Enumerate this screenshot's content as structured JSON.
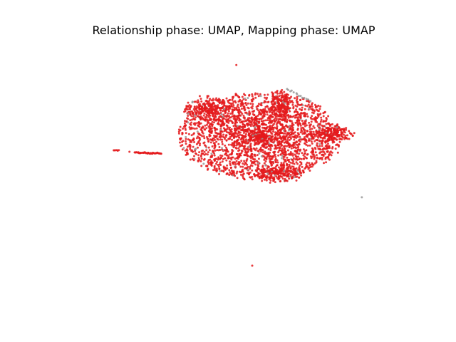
{
  "chart_data": {
    "type": "scatter",
    "title": "Relationship phase: UMAP, Mapping phase: UMAP",
    "xlabel": "",
    "ylabel": "",
    "axes_visible": false,
    "grid": false,
    "legend": "none",
    "colors": {
      "primary": "#e41a1c",
      "secondary": "#999999"
    },
    "xlim": [
      0,
      20
    ],
    "ylim": [
      0,
      15
    ],
    "clusters": [
      {
        "name": "main",
        "color": "#e41a1c",
        "count": 2600,
        "cx": 11.5,
        "cy": 9.6,
        "rx": 4.6,
        "ry": 2.5
      },
      {
        "name": "upper-left-arm",
        "color": "#e41a1c",
        "count": 260,
        "cx": 8.6,
        "cy": 11.1,
        "rx": 1.4,
        "ry": 0.7
      },
      {
        "name": "upper-right-arm",
        "color": "#e41a1c",
        "count": 180,
        "cx": 12.7,
        "cy": 11.3,
        "rx": 0.6,
        "ry": 0.9
      },
      {
        "name": "right-arm",
        "color": "#e41a1c",
        "count": 180,
        "cx": 15.6,
        "cy": 9.7,
        "rx": 1.3,
        "ry": 0.4
      },
      {
        "name": "bottom-lobe",
        "color": "#e41a1c",
        "count": 200,
        "cx": 12.5,
        "cy": 7.5,
        "rx": 1.4,
        "ry": 0.5
      }
    ],
    "strips": [
      {
        "name": "left-strip",
        "color": "#e41a1c",
        "x_from": 4.4,
        "y_from": 8.65,
        "x_to": 5.9,
        "y_to": 8.6,
        "count": 40
      },
      {
        "name": "top-strip",
        "color": "#999999",
        "x_from": 13.0,
        "y_from": 12.3,
        "x_to": 14.3,
        "y_to": 11.6,
        "count": 14
      },
      {
        "name": "small-left-blob",
        "color": "#e41a1c",
        "x_from": 3.2,
        "y_from": 8.8,
        "x_to": 3.5,
        "y_to": 8.75,
        "count": 6
      }
    ],
    "outliers": [
      {
        "x": 10.15,
        "y": 13.65,
        "color": "#e41a1c"
      },
      {
        "x": 11.05,
        "y": 2.2,
        "color": "#e41a1c"
      },
      {
        "x": 17.25,
        "y": 6.1,
        "color": "#999999"
      },
      {
        "x": 15.9,
        "y": 8.65,
        "color": "#e41a1c"
      },
      {
        "x": 4.1,
        "y": 8.7,
        "color": "#e41a1c"
      }
    ]
  }
}
